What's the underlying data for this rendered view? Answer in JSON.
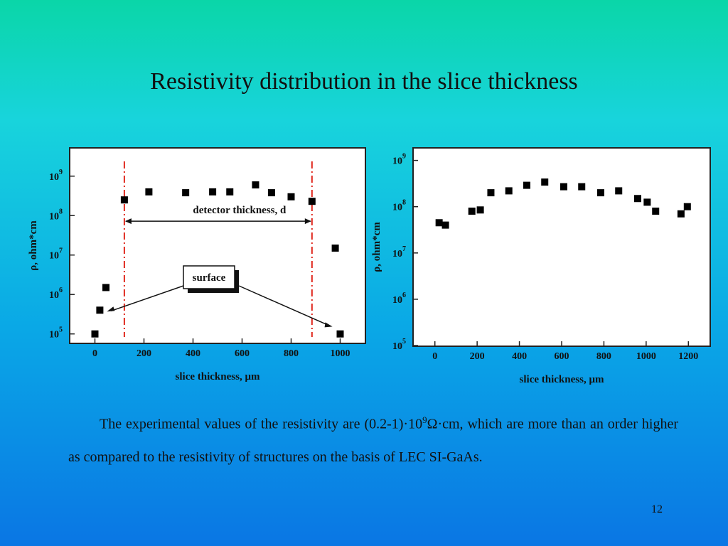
{
  "slide": {
    "title": "Resistivity distribution in the slice thickness",
    "paragraph": {
      "part1": "The experimental values of the resistivity are (0.2-1)·10",
      "sup": "9",
      "part2": "Ω·cm, which are more than an order higher as compared to  the resistivity of structures on the basis of LEC SI-GaAs."
    },
    "page_number": "12"
  },
  "chart_data": [
    {
      "type": "scatter",
      "xlabel": "slice thickness, μm",
      "ylabel": "ρ, ohm*cm",
      "xlim": [
        -100,
        1100
      ],
      "ylim": [
        60000,
        5000000000
      ],
      "yscale": "log",
      "xticks": [
        0,
        200,
        400,
        600,
        800,
        1000
      ],
      "ytick_exponents": [
        5,
        6,
        7,
        8,
        9
      ],
      "marker": "square",
      "x": [
        0,
        20,
        45,
        120,
        220,
        370,
        480,
        550,
        655,
        720,
        800,
        885,
        980,
        1000
      ],
      "y": [
        100000,
        400000,
        1500000,
        250000000,
        400000000,
        380000000,
        400000000,
        400000000,
        600000000,
        380000000,
        300000000,
        230000000,
        15000000,
        100000
      ],
      "vlines": [
        120,
        885
      ],
      "annotations": {
        "detector": "detector thickness, d",
        "surface": "surface"
      }
    },
    {
      "type": "scatter",
      "xlabel": "slice thickness, μm",
      "ylabel": "ρ, ohm*cm",
      "xlim": [
        -100,
        1300
      ],
      "ylim": [
        100000,
        1800000000
      ],
      "yscale": "log",
      "xticks": [
        0,
        200,
        400,
        600,
        800,
        1000,
        1200
      ],
      "ytick_exponents": [
        5,
        6,
        7,
        8,
        9
      ],
      "marker": "square",
      "x": [
        20,
        50,
        175,
        215,
        265,
        350,
        435,
        520,
        610,
        695,
        785,
        870,
        960,
        1005,
        1045,
        1165,
        1195
      ],
      "y": [
        45000000,
        40000000,
        80000000,
        85000000,
        200000000,
        220000000,
        290000000,
        340000000,
        270000000,
        270000000,
        200000000,
        220000000,
        150000000,
        125000000,
        80000000,
        70000000,
        100000000
      ]
    }
  ]
}
